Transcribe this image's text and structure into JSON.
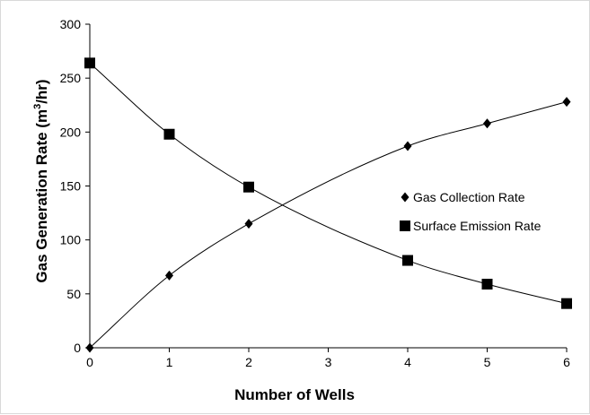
{
  "chart_data": {
    "type": "scatter",
    "title": "",
    "xlabel": "Number of Wells",
    "ylabel": "Gas Generation Rate (m³/hr)",
    "ylabel_parts": {
      "before": "Gas Generation Rate (m",
      "superscript": "3",
      "after": "/hr)"
    },
    "xlim": [
      0,
      6
    ],
    "ylim": [
      0,
      300
    ],
    "x_ticks": [
      "0",
      "1",
      "2",
      "3",
      "4",
      "5",
      "6"
    ],
    "y_ticks": [
      "0",
      "50",
      "100",
      "150",
      "200",
      "250",
      "300"
    ],
    "grid": false,
    "legend_position": "right-middle",
    "trendlines": true,
    "series": [
      {
        "name": "Gas Collection Rate",
        "marker": "diamond",
        "color": "#000000",
        "points": [
          {
            "x": 0,
            "y": 0
          },
          {
            "x": 1,
            "y": 67
          },
          {
            "x": 2,
            "y": 115
          },
          {
            "x": 4,
            "y": 187
          },
          {
            "x": 5,
            "y": 208
          },
          {
            "x": 6,
            "y": 228
          }
        ]
      },
      {
        "name": "Surface Emission Rate",
        "marker": "square",
        "color": "#000000",
        "points": [
          {
            "x": 0,
            "y": 264
          },
          {
            "x": 1,
            "y": 198
          },
          {
            "x": 2,
            "y": 149
          },
          {
            "x": 4,
            "y": 81
          },
          {
            "x": 5,
            "y": 59
          },
          {
            "x": 6,
            "y": 41
          }
        ]
      }
    ]
  }
}
